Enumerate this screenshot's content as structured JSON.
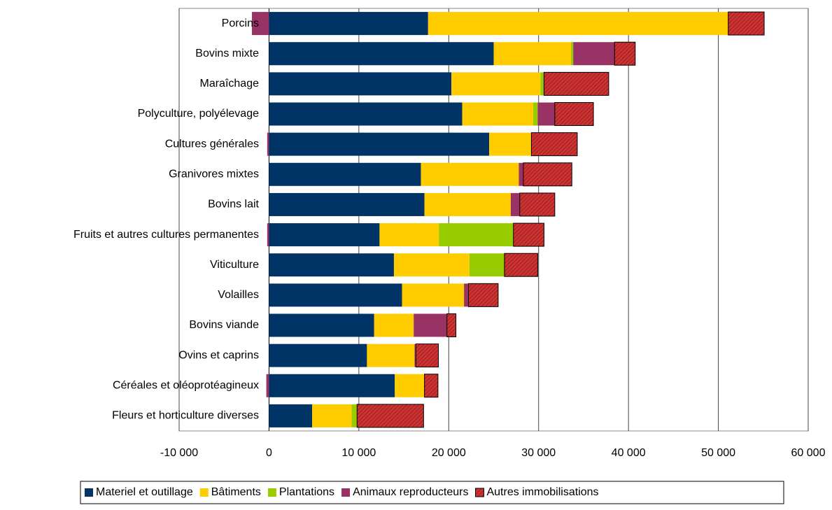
{
  "chart_data": {
    "type": "stacked-bar-horizontal",
    "categories": [
      "Porcins",
      "Bovins mixte",
      "Maraîchage",
      "Polyculture, polyélevage",
      "Cultures générales",
      "Granivores mixtes",
      "Bovins lait",
      "Fruits et autres cultures permanentes",
      "Viticulture",
      "Volailles",
      "Bovins viande",
      "Ovins et caprins",
      "Céréales et oléoprotéagineux",
      "Fleurs et horticulture diverses"
    ],
    "series": [
      {
        "name": "Materiel et outillage",
        "color": "#003366",
        "values": [
          17700,
          25000,
          20300,
          21500,
          24500,
          16900,
          17300,
          12300,
          13900,
          14800,
          11700,
          10900,
          14000,
          4800
        ]
      },
      {
        "name": "Bâtiments",
        "color": "#ffcc00",
        "values": [
          33400,
          8600,
          9900,
          7900,
          4700,
          10900,
          9600,
          6600,
          8400,
          6900,
          4400,
          5300,
          3300,
          4400
        ]
      },
      {
        "name": "Plantations",
        "color": "#99cc00",
        "values": [
          0,
          250,
          400,
          500,
          0,
          0,
          0,
          8300,
          3900,
          0,
          0,
          0,
          0,
          600
        ]
      },
      {
        "name": "Animaux reproducteurs",
        "color": "#993366",
        "values": [
          -1900,
          4600,
          0,
          1900,
          -200,
          500,
          1000,
          -200,
          0,
          500,
          3700,
          150,
          -300,
          0
        ]
      },
      {
        "name": "Autres immobilisations",
        "color": "#cc3333",
        "pattern": "hatch",
        "values": [
          4000,
          2300,
          7200,
          4300,
          5100,
          5400,
          3900,
          3400,
          3700,
          3300,
          1000,
          2500,
          1500,
          7400
        ]
      }
    ],
    "xlim": [
      -10000,
      60000
    ],
    "xticks": [
      {
        "value": -10000,
        "label": "-10 000"
      },
      0,
      {
        "value": 10000,
        "label": "10 000"
      },
      {
        "value": 20000,
        "label": "20 000"
      },
      {
        "value": 30000,
        "label": "30 000"
      },
      {
        "value": 40000,
        "label": "40 000"
      },
      {
        "value": 50000,
        "label": "50 000"
      },
      {
        "value": 60000,
        "label": "60 000"
      }
    ],
    "grid": true,
    "legend": "bottom"
  }
}
